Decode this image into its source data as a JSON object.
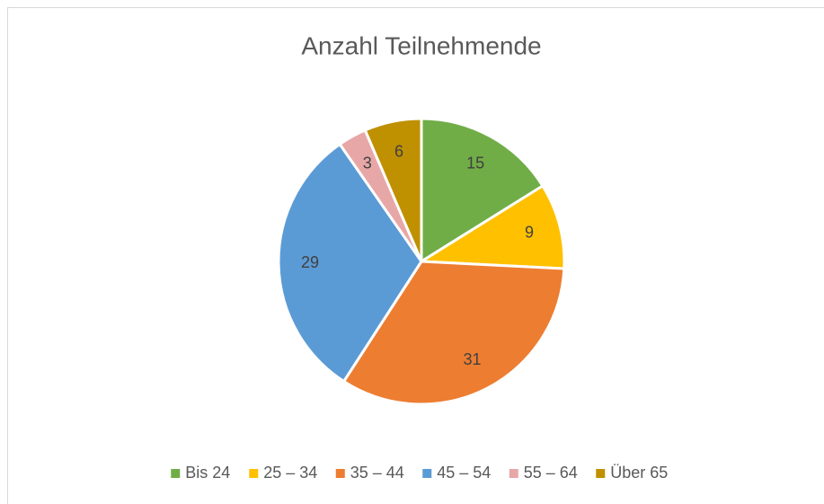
{
  "chart_data": {
    "type": "pie",
    "title": "Anzahl Teilnehmende",
    "categories": [
      "Bis 24",
      "25 – 34",
      "35 – 44",
      "45 – 54",
      "55 – 64",
      "Über 65"
    ],
    "values": [
      15,
      9,
      31,
      29,
      3,
      6
    ],
    "colors": [
      "#70ad47",
      "#ffc000",
      "#ed7d31",
      "#5b9bd5",
      "#e8a7a7",
      "#bf9000"
    ],
    "legend": "bottom"
  }
}
